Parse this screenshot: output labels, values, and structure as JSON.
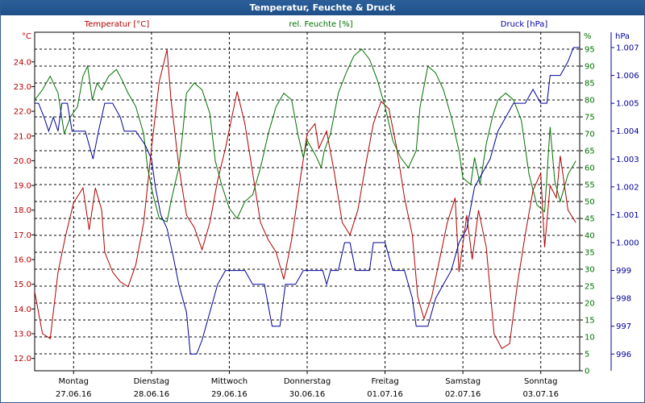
{
  "window": {
    "title": "Temperatur, Feuchte & Druck"
  },
  "colors": {
    "temperature": "#b00000",
    "humidity": "#007000",
    "pressure": "#00009a",
    "grid": "#000000",
    "titlebar": "#1f4f87"
  },
  "chart_data": {
    "type": "line",
    "title": "Temperatur, Feuchte & Druck",
    "axes": {
      "temperature": {
        "label": "Temperatur [°C]",
        "unit": "°C",
        "ylim": [
          11.5,
          25.2
        ],
        "ticks": [
          "12.0",
          "13.0",
          "14.0",
          "15.0",
          "16.0",
          "17.0",
          "18.0",
          "19.0",
          "20.0",
          "21.0",
          "22.0",
          "23.0",
          "24.0"
        ],
        "tick_values": [
          12,
          13,
          14,
          15,
          16,
          17,
          18,
          19,
          20,
          21,
          22,
          23,
          24
        ]
      },
      "humidity": {
        "label": "rel. Feuchte [%]",
        "unit": "%",
        "ylim": [
          0,
          100
        ],
        "ticks": [
          "0",
          "5",
          "10",
          "15",
          "20",
          "25",
          "30",
          "35",
          "40",
          "45",
          "50",
          "55",
          "60",
          "65",
          "70",
          "75",
          "80",
          "85",
          "90",
          "95"
        ],
        "tick_values": [
          0,
          5,
          10,
          15,
          20,
          25,
          30,
          35,
          40,
          45,
          50,
          55,
          60,
          65,
          70,
          75,
          80,
          85,
          90,
          95
        ]
      },
      "pressure": {
        "label": "Druck [hPa]",
        "unit": "hPa",
        "ylim": [
          995.4,
          1007.55
        ],
        "ticks": [
          "996",
          "997",
          "998",
          "999",
          "1.000",
          "1.001",
          "1.002",
          "1.003",
          "1.004",
          "1.005",
          "1.006",
          "1.007"
        ],
        "tick_values": [
          996,
          997,
          998,
          999,
          1000,
          1001,
          1002,
          1003,
          1004,
          1005,
          1006,
          1007
        ]
      }
    },
    "x_range": [
      0,
      7
    ],
    "x_days": [
      {
        "day": "Montag",
        "date": "27.06.16"
      },
      {
        "day": "Dienstag",
        "date": "28.06.16"
      },
      {
        "day": "Mittwoch",
        "date": "29.06.16"
      },
      {
        "day": "Donnerstag",
        "date": "30.06.16"
      },
      {
        "day": "Freitag",
        "date": "01.07.16"
      },
      {
        "day": "Samstag",
        "date": "02.07.16"
      },
      {
        "day": "Sonntag",
        "date": "03.07.16"
      }
    ],
    "series": [
      {
        "name": "Temperatur [°C]",
        "key": "temperature",
        "axis": "temperature",
        "points": [
          [
            0,
            14.7
          ],
          [
            0.1,
            13.0
          ],
          [
            0.2,
            12.8
          ],
          [
            0.3,
            15.5
          ],
          [
            0.4,
            17.0
          ],
          [
            0.5,
            18.3
          ],
          [
            0.62,
            18.9
          ],
          [
            0.7,
            17.2
          ],
          [
            0.78,
            18.9
          ],
          [
            0.86,
            18.0
          ],
          [
            0.9,
            16.3
          ],
          [
            1.0,
            15.5
          ],
          [
            1.1,
            15.1
          ],
          [
            1.2,
            14.9
          ],
          [
            1.3,
            15.8
          ],
          [
            1.4,
            17.5
          ],
          [
            1.5,
            20.5
          ],
          [
            1.6,
            23.2
          ],
          [
            1.7,
            24.5
          ],
          [
            1.75,
            22.5
          ],
          [
            1.85,
            19.8
          ],
          [
            1.95,
            17.8
          ],
          [
            2.05,
            17.3
          ],
          [
            2.15,
            16.4
          ],
          [
            2.25,
            17.5
          ],
          [
            2.35,
            19.2
          ],
          [
            2.45,
            20.5
          ],
          [
            2.6,
            22.8
          ],
          [
            2.7,
            21.5
          ],
          [
            2.8,
            19.5
          ],
          [
            2.9,
            17.5
          ],
          [
            3.0,
            16.8
          ],
          [
            3.1,
            16.3
          ],
          [
            3.2,
            15.2
          ],
          [
            3.3,
            16.8
          ],
          [
            3.4,
            19.0
          ],
          [
            3.5,
            21.1
          ],
          [
            3.6,
            21.5
          ],
          [
            3.65,
            20.5
          ],
          [
            3.75,
            21.2
          ],
          [
            3.85,
            19.5
          ],
          [
            3.95,
            17.5
          ],
          [
            4.05,
            17.0
          ],
          [
            4.15,
            18.0
          ],
          [
            4.25,
            19.8
          ],
          [
            4.35,
            21.5
          ],
          [
            4.45,
            22.4
          ],
          [
            4.55,
            22.1
          ],
          [
            4.65,
            20.5
          ],
          [
            4.75,
            18.5
          ],
          [
            4.85,
            17.0
          ],
          [
            4.92,
            14.5
          ],
          [
            5.0,
            13.6
          ],
          [
            5.1,
            14.5
          ],
          [
            5.2,
            16.0
          ],
          [
            5.3,
            17.5
          ],
          [
            5.4,
            18.5
          ],
          [
            5.45,
            15.5
          ],
          [
            5.55,
            17.8
          ],
          [
            5.62,
            16.0
          ],
          [
            5.7,
            18.0
          ],
          [
            5.8,
            16.5
          ],
          [
            5.9,
            13.0
          ],
          [
            6.0,
            12.4
          ],
          [
            6.1,
            12.6
          ],
          [
            6.2,
            15.0
          ],
          [
            6.3,
            17.0
          ],
          [
            6.4,
            18.8
          ],
          [
            6.5,
            19.5
          ],
          [
            6.55,
            16.5
          ],
          [
            6.62,
            19.0
          ],
          [
            6.7,
            18.5
          ],
          [
            6.75,
            20.2
          ],
          [
            6.85,
            18.0
          ],
          [
            6.95,
            17.5
          ]
        ]
      },
      {
        "name": "rel. Feuchte [%]",
        "key": "humidity",
        "axis": "humidity",
        "points": [
          [
            0,
            80
          ],
          [
            0.1,
            83
          ],
          [
            0.2,
            87
          ],
          [
            0.3,
            82
          ],
          [
            0.38,
            70
          ],
          [
            0.46,
            75
          ],
          [
            0.55,
            78
          ],
          [
            0.62,
            87
          ],
          [
            0.68,
            90
          ],
          [
            0.74,
            80
          ],
          [
            0.8,
            85
          ],
          [
            0.86,
            83
          ],
          [
            0.95,
            87
          ],
          [
            1.05,
            89
          ],
          [
            1.12,
            86
          ],
          [
            1.2,
            82
          ],
          [
            1.3,
            78
          ],
          [
            1.4,
            70
          ],
          [
            1.45,
            60
          ],
          [
            1.52,
            52
          ],
          [
            1.6,
            45
          ],
          [
            1.7,
            44
          ],
          [
            1.75,
            50
          ],
          [
            1.85,
            60
          ],
          [
            1.9,
            70
          ],
          [
            1.95,
            82
          ],
          [
            2.05,
            85
          ],
          [
            2.15,
            83
          ],
          [
            2.25,
            76
          ],
          [
            2.32,
            62
          ],
          [
            2.4,
            55
          ],
          [
            2.5,
            48
          ],
          [
            2.6,
            45
          ],
          [
            2.7,
            50
          ],
          [
            2.8,
            52
          ],
          [
            2.9,
            60
          ],
          [
            3.0,
            70
          ],
          [
            3.1,
            78
          ],
          [
            3.2,
            82
          ],
          [
            3.3,
            80
          ],
          [
            3.38,
            70
          ],
          [
            3.45,
            63
          ],
          [
            3.5,
            68
          ],
          [
            3.6,
            64
          ],
          [
            3.68,
            60
          ],
          [
            3.72,
            65
          ],
          [
            3.8,
            70
          ],
          [
            3.9,
            82
          ],
          [
            4.0,
            88
          ],
          [
            4.1,
            93
          ],
          [
            4.2,
            95
          ],
          [
            4.3,
            92
          ],
          [
            4.4,
            86
          ],
          [
            4.5,
            78
          ],
          [
            4.6,
            68
          ],
          [
            4.7,
            63
          ],
          [
            4.8,
            60
          ],
          [
            4.9,
            65
          ],
          [
            4.95,
            78
          ],
          [
            5.05,
            90
          ],
          [
            5.15,
            88
          ],
          [
            5.25,
            83
          ],
          [
            5.35,
            75
          ],
          [
            5.45,
            65
          ],
          [
            5.5,
            57
          ],
          [
            5.6,
            55
          ],
          [
            5.65,
            63
          ],
          [
            5.72,
            55
          ],
          [
            5.8,
            67
          ],
          [
            5.88,
            75
          ],
          [
            5.95,
            80
          ],
          [
            6.05,
            82
          ],
          [
            6.15,
            80
          ],
          [
            6.25,
            74
          ],
          [
            6.35,
            58
          ],
          [
            6.45,
            49
          ],
          [
            6.55,
            47
          ],
          [
            6.62,
            72
          ],
          [
            6.68,
            56
          ],
          [
            6.75,
            50
          ],
          [
            6.85,
            58
          ],
          [
            6.95,
            62
          ]
        ]
      },
      {
        "name": "Druck [hPa]",
        "key": "pressure",
        "axis": "pressure",
        "points": [
          [
            0,
            1005.0
          ],
          [
            0.05,
            1005.0
          ],
          [
            0.12,
            1004.5
          ],
          [
            0.18,
            1004.0
          ],
          [
            0.24,
            1004.5
          ],
          [
            0.3,
            1004.0
          ],
          [
            0.35,
            1005.0
          ],
          [
            0.42,
            1005.0
          ],
          [
            0.48,
            1004.0
          ],
          [
            0.55,
            1004.0
          ],
          [
            0.65,
            1004.0
          ],
          [
            0.75,
            1003.0
          ],
          [
            0.82,
            1004.0
          ],
          [
            0.9,
            1005.0
          ],
          [
            1.0,
            1005.0
          ],
          [
            1.1,
            1004.5
          ],
          [
            1.15,
            1004.0
          ],
          [
            1.3,
            1004.0
          ],
          [
            1.42,
            1003.5
          ],
          [
            1.5,
            1003.0
          ],
          [
            1.55,
            1002.0
          ],
          [
            1.62,
            1001.0
          ],
          [
            1.7,
            1000.5
          ],
          [
            1.78,
            999.5
          ],
          [
            1.85,
            998.5
          ],
          [
            1.95,
            997.5
          ],
          [
            2.0,
            996.0
          ],
          [
            2.08,
            996.0
          ],
          [
            2.15,
            996.5
          ],
          [
            2.25,
            997.5
          ],
          [
            2.35,
            998.5
          ],
          [
            2.45,
            999.0
          ],
          [
            2.7,
            999.0
          ],
          [
            2.8,
            998.5
          ],
          [
            2.95,
            998.5
          ],
          [
            3.05,
            997.0
          ],
          [
            3.15,
            997.0
          ],
          [
            3.22,
            998.5
          ],
          [
            3.35,
            998.5
          ],
          [
            3.45,
            999.0
          ],
          [
            3.7,
            999.0
          ],
          [
            3.75,
            998.5
          ],
          [
            3.8,
            999.0
          ],
          [
            3.9,
            999.0
          ],
          [
            3.98,
            1000.0
          ],
          [
            4.05,
            1000.0
          ],
          [
            4.12,
            999.0
          ],
          [
            4.3,
            999.0
          ],
          [
            4.35,
            1000.0
          ],
          [
            4.5,
            1000.0
          ],
          [
            4.6,
            999.0
          ],
          [
            4.75,
            999.0
          ],
          [
            4.85,
            998.0
          ],
          [
            4.9,
            997.0
          ],
          [
            5.05,
            997.0
          ],
          [
            5.15,
            998.0
          ],
          [
            5.25,
            998.5
          ],
          [
            5.35,
            999.0
          ],
          [
            5.45,
            1000.0
          ],
          [
            5.55,
            1000.5
          ],
          [
            5.65,
            1002.0
          ],
          [
            5.75,
            1002.5
          ],
          [
            5.85,
            1003.0
          ],
          [
            5.95,
            1004.0
          ],
          [
            6.05,
            1004.5
          ],
          [
            6.15,
            1005.0
          ],
          [
            6.3,
            1005.0
          ],
          [
            6.4,
            1005.5
          ],
          [
            6.5,
            1005.0
          ],
          [
            6.58,
            1005.0
          ],
          [
            6.62,
            1006.0
          ],
          [
            6.75,
            1006.0
          ],
          [
            6.85,
            1006.5
          ],
          [
            6.92,
            1007.0
          ],
          [
            7.0,
            1007.0
          ]
        ]
      }
    ]
  }
}
